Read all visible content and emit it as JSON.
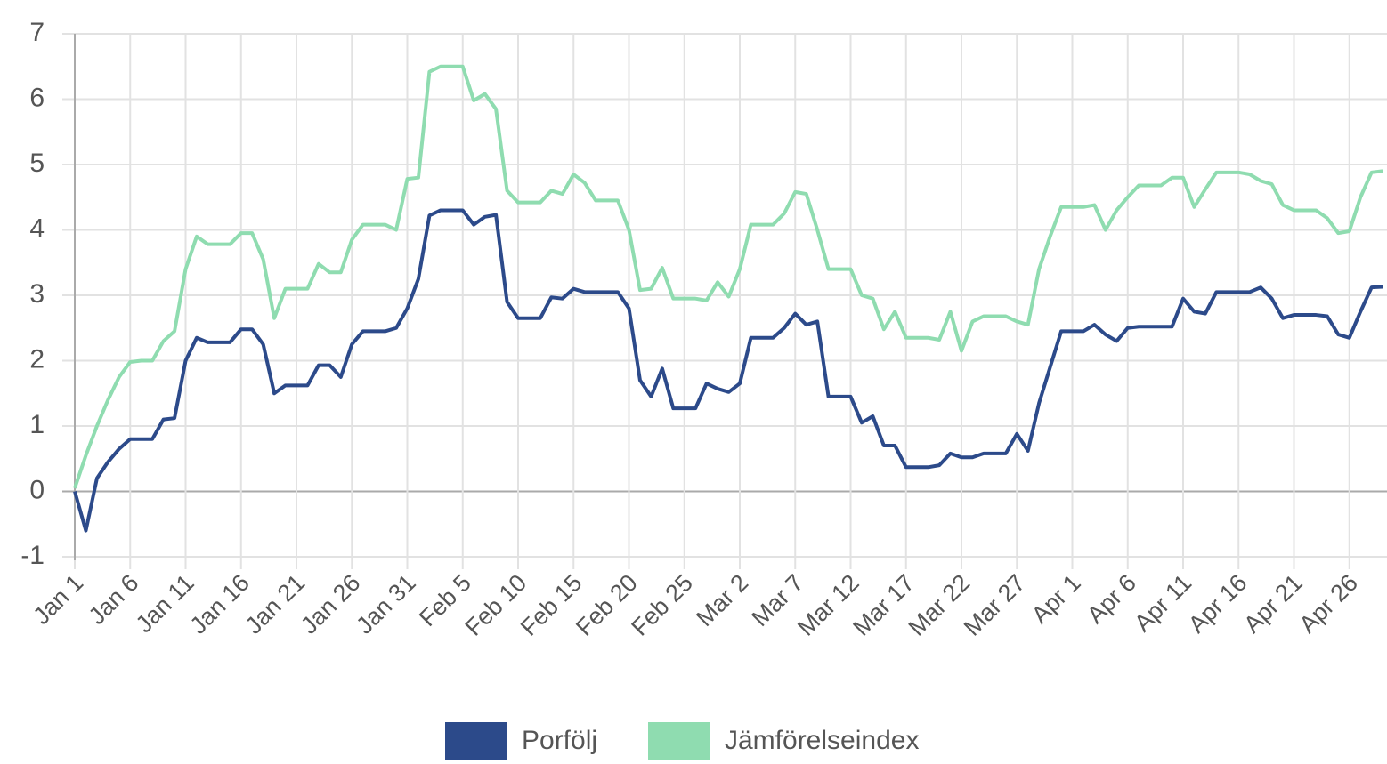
{
  "chart_data": {
    "type": "line",
    "categories": [
      "Jan 1",
      null,
      null,
      null,
      null,
      "Jan 6",
      null,
      null,
      null,
      null,
      "Jan 11",
      null,
      null,
      null,
      null,
      "Jan 16",
      null,
      null,
      null,
      null,
      "Jan 21",
      null,
      null,
      null,
      null,
      "Jan 26",
      null,
      null,
      null,
      null,
      "Jan 31",
      null,
      null,
      null,
      null,
      "Feb 5",
      null,
      null,
      null,
      null,
      "Feb 10",
      null,
      null,
      null,
      null,
      "Feb 15",
      null,
      null,
      null,
      null,
      "Feb 20",
      null,
      null,
      null,
      null,
      "Feb 25",
      null,
      null,
      null,
      null,
      "Mar 2",
      null,
      null,
      null,
      null,
      "Mar 7",
      null,
      null,
      null,
      null,
      "Mar 12",
      null,
      null,
      null,
      null,
      "Mar 17",
      null,
      null,
      null,
      null,
      "Mar 22",
      null,
      null,
      null,
      null,
      "Mar 27",
      null,
      null,
      null,
      null,
      "Apr 1",
      null,
      null,
      null,
      null,
      "Apr 6",
      null,
      null,
      null,
      null,
      "Apr 11",
      null,
      null,
      null,
      null,
      "Apr 16",
      null,
      null,
      null,
      null,
      "Apr 21",
      null,
      null,
      null,
      null,
      "Apr 26",
      null,
      null,
      null
    ],
    "series": [
      {
        "name": "Porfölj",
        "color": "#2c4a8a",
        "values": [
          0,
          -0.6,
          0.2,
          0.45,
          0.65,
          0.8,
          0.8,
          0.8,
          1.1,
          1.12,
          2.0,
          2.35,
          2.28,
          2.28,
          2.28,
          2.48,
          2.48,
          2.25,
          1.5,
          1.62,
          1.62,
          1.62,
          1.93,
          1.93,
          1.75,
          2.25,
          2.45,
          2.45,
          2.45,
          2.5,
          2.8,
          3.25,
          4.22,
          4.3,
          4.3,
          4.3,
          4.08,
          4.2,
          4.23,
          2.9,
          2.65,
          2.65,
          2.65,
          2.97,
          2.95,
          3.1,
          3.05,
          3.05,
          3.05,
          3.05,
          2.8,
          1.7,
          1.45,
          1.88,
          1.27,
          1.27,
          1.27,
          1.65,
          1.57,
          1.52,
          1.65,
          2.35,
          2.35,
          2.35,
          2.5,
          2.72,
          2.55,
          2.6,
          1.45,
          1.45,
          1.45,
          1.05,
          1.15,
          0.7,
          0.7,
          0.37,
          0.37,
          0.37,
          0.4,
          0.58,
          0.52,
          0.52,
          0.58,
          0.58,
          0.58,
          0.88,
          0.62,
          1.35,
          1.9,
          2.45,
          2.45,
          2.45,
          2.55,
          2.4,
          2.3,
          2.5,
          2.52,
          2.52,
          2.52,
          2.52,
          2.95,
          2.75,
          2.72,
          3.05,
          3.05,
          3.05,
          3.05,
          3.12,
          2.95,
          2.65,
          2.7,
          2.7,
          2.7,
          2.68,
          2.4,
          2.35,
          2.75,
          3.12,
          3.13
        ]
      },
      {
        "name": "Jämförelseindex",
        "color": "#8fdcb0",
        "values": [
          0.05,
          0.55,
          1.0,
          1.4,
          1.75,
          1.98,
          2.0,
          2.0,
          2.3,
          2.45,
          3.4,
          3.9,
          3.78,
          3.78,
          3.78,
          3.95,
          3.95,
          3.55,
          2.65,
          3.1,
          3.1,
          3.1,
          3.48,
          3.35,
          3.35,
          3.85,
          4.08,
          4.08,
          4.08,
          4.0,
          4.78,
          4.8,
          6.42,
          6.5,
          6.5,
          6.5,
          5.98,
          6.08,
          5.85,
          4.6,
          4.42,
          4.42,
          4.42,
          4.6,
          4.55,
          4.85,
          4.72,
          4.45,
          4.45,
          4.45,
          4.0,
          3.08,
          3.1,
          3.42,
          2.95,
          2.95,
          2.95,
          2.92,
          3.2,
          2.98,
          3.4,
          4.08,
          4.08,
          4.08,
          4.25,
          4.58,
          4.55,
          4.0,
          3.4,
          3.4,
          3.4,
          3.0,
          2.95,
          2.48,
          2.75,
          2.35,
          2.35,
          2.35,
          2.32,
          2.75,
          2.15,
          2.6,
          2.68,
          2.68,
          2.68,
          2.6,
          2.55,
          3.4,
          3.9,
          4.35,
          4.35,
          4.35,
          4.38,
          4.0,
          4.3,
          4.5,
          4.68,
          4.68,
          4.68,
          4.8,
          4.8,
          4.35,
          4.62,
          4.88,
          4.88,
          4.88,
          4.85,
          4.75,
          4.7,
          4.38,
          4.3,
          4.3,
          4.3,
          4.18,
          3.95,
          3.98,
          4.5,
          4.88,
          4.9
        ]
      }
    ],
    "ylim": [
      -1,
      7
    ],
    "yticks": [
      -1,
      0,
      1,
      2,
      3,
      4,
      5,
      6,
      7
    ],
    "grid": true,
    "legend": "bottom"
  }
}
